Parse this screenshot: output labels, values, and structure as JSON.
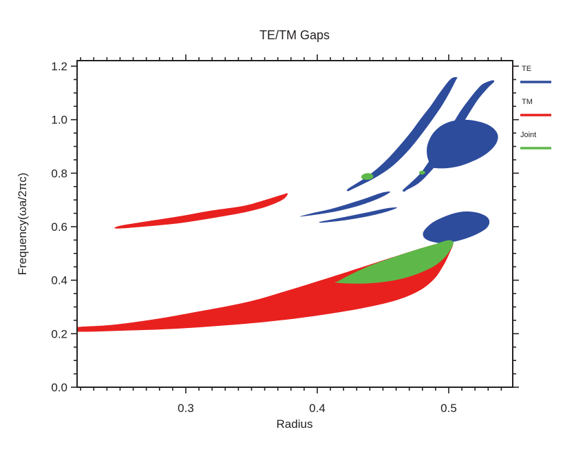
{
  "chart_data": {
    "type": "area",
    "title": "TE/TM Gaps",
    "xlabel": "Radius",
    "ylabel": "Frequency(ωa/2πc)",
    "xlim": [
      0.2173,
      0.5487
    ],
    "ylim": [
      0,
      1.2207
    ],
    "grid": false,
    "legend_position": "outside-top-right",
    "x_major_ticks": [
      0.3,
      0.4,
      0.5
    ],
    "x_tick_labels": [
      "0.3",
      "0.4",
      "0.5"
    ],
    "x_minor_step": 0.01,
    "y_major_ticks": [
      0,
      0.2,
      0.4,
      0.6,
      0.8,
      1.0,
      1.2
    ],
    "y_tick_labels": [
      "0.0",
      "0.2",
      "0.4",
      "0.6",
      "0.8",
      "1.0",
      "1.2"
    ],
    "y_minor_step": 0.05,
    "legend": [
      {
        "label": "TE",
        "color": "#2e4c9c"
      },
      {
        "label": "TM",
        "color": "#e8211f"
      },
      {
        "label": "Joint",
        "color": "#5eb849"
      }
    ],
    "series": [
      {
        "name": "TM",
        "color": "#e8211f",
        "polygons": [
          {
            "name": "tm-main-gap",
            "points": [
              [
                0.2173,
                0.208
              ],
              [
                0.25,
                0.211
              ],
              [
                0.29,
                0.218
              ],
              [
                0.33,
                0.231
              ],
              [
                0.37,
                0.249
              ],
              [
                0.41,
                0.275
              ],
              [
                0.44,
                0.301
              ],
              [
                0.462,
                0.328
              ],
              [
                0.478,
                0.362
              ],
              [
                0.489,
                0.405
              ],
              [
                0.496,
                0.455
              ],
              [
                0.501,
                0.505
              ],
              [
                0.5035,
                0.54
              ],
              [
                0.4995,
                0.548
              ],
              [
                0.49,
                0.535
              ],
              [
                0.474,
                0.512
              ],
              [
                0.455,
                0.482
              ],
              [
                0.433,
                0.447
              ],
              [
                0.408,
                0.408
              ],
              [
                0.378,
                0.362
              ],
              [
                0.348,
                0.32
              ],
              [
                0.312,
                0.285
              ],
              [
                0.276,
                0.254
              ],
              [
                0.244,
                0.233
              ],
              [
                0.2173,
                0.224
              ]
            ]
          },
          {
            "name": "tm-lens-gap",
            "points": [
              [
                0.2475,
                0.593
              ],
              [
                0.27,
                0.601
              ],
              [
                0.295,
                0.613
              ],
              [
                0.32,
                0.632
              ],
              [
                0.345,
                0.654
              ],
              [
                0.362,
                0.676
              ],
              [
                0.374,
                0.702
              ],
              [
                0.3775,
                0.724
              ],
              [
                0.373,
                0.719
              ],
              [
                0.359,
                0.698
              ],
              [
                0.343,
                0.677
              ],
              [
                0.319,
                0.66
              ],
              [
                0.294,
                0.638
              ],
              [
                0.269,
                0.619
              ],
              [
                0.2495,
                0.603
              ]
            ]
          },
          {
            "name": "tm-needle-gap",
            "points": [
              [
                0.4315,
                0.756
              ],
              [
                0.4385,
                0.772
              ],
              [
                0.4455,
                0.793
              ],
              [
                0.452,
                0.816
              ],
              [
                0.4575,
                0.84
              ],
              [
                0.4615,
                0.863
              ],
              [
                0.4635,
                0.882
              ],
              [
                0.4605,
                0.872
              ],
              [
                0.455,
                0.846
              ],
              [
                0.449,
                0.82
              ],
              [
                0.4425,
                0.795
              ],
              [
                0.4355,
                0.772
              ],
              [
                0.4295,
                0.757
              ]
            ]
          }
        ]
      },
      {
        "name": "TE",
        "color": "#2e4c9c",
        "polygons": [
          {
            "name": "te-low-blob-gap",
            "points": [
              [
                0.4865,
                0.545
              ],
              [
                0.496,
                0.538
              ],
              [
                0.506,
                0.546
              ],
              [
                0.515,
                0.559
              ],
              [
                0.523,
                0.576
              ],
              [
                0.529,
                0.596
              ],
              [
                0.531,
                0.617
              ],
              [
                0.529,
                0.637
              ],
              [
                0.522,
                0.652
              ],
              [
                0.513,
                0.657
              ],
              [
                0.504,
                0.65
              ],
              [
                0.496,
                0.636
              ],
              [
                0.4885,
                0.618
              ],
              [
                0.4835,
                0.598
              ],
              [
                0.4805,
                0.577
              ],
              [
                0.4815,
                0.558
              ]
            ]
          },
          {
            "name": "te-sliver-upper-gap",
            "points": [
              [
                0.388,
                0.638
              ],
              [
                0.402,
                0.647
              ],
              [
                0.416,
                0.659
              ],
              [
                0.43,
                0.676
              ],
              [
                0.4425,
                0.697
              ],
              [
                0.4515,
                0.717
              ],
              [
                0.4555,
                0.731
              ],
              [
                0.449,
                0.727
              ],
              [
                0.4385,
                0.709
              ],
              [
                0.4255,
                0.688
              ],
              [
                0.411,
                0.667
              ],
              [
                0.3965,
                0.651
              ],
              [
                0.3885,
                0.641
              ]
            ]
          },
          {
            "name": "te-sliver-lower-gap",
            "points": [
              [
                0.4035,
                0.615
              ],
              [
                0.419,
                0.623
              ],
              [
                0.4335,
                0.634
              ],
              [
                0.4475,
                0.649
              ],
              [
                0.4575,
                0.664
              ],
              [
                0.4605,
                0.672
              ],
              [
                0.452,
                0.668
              ],
              [
                0.4385,
                0.654
              ],
              [
                0.4235,
                0.639
              ],
              [
                0.409,
                0.625
              ],
              [
                0.402,
                0.618
              ]
            ]
          },
          {
            "name": "te-band1-gap",
            "points": [
              [
                0.4235,
                0.733
              ],
              [
                0.427,
                0.741
              ],
              [
                0.443,
                0.78
              ],
              [
                0.4555,
                0.82
              ],
              [
                0.4645,
                0.86
              ],
              [
                0.472,
                0.9
              ],
              [
                0.48,
                0.95
              ],
              [
                0.4875,
                1.0
              ],
              [
                0.4945,
                1.05
              ],
              [
                0.5005,
                1.1
              ],
              [
                0.5055,
                1.148
              ],
              [
                0.5065,
                1.158
              ],
              [
                0.5015,
                1.152
              ],
              [
                0.4935,
                1.103
              ],
              [
                0.4865,
                1.053
              ],
              [
                0.4785,
                1.002
              ],
              [
                0.471,
                0.952
              ],
              [
                0.4625,
                0.902
              ],
              [
                0.455,
                0.861
              ],
              [
                0.4465,
                0.821
              ],
              [
                0.436,
                0.781
              ],
              [
                0.4235,
                0.742
              ]
            ]
          },
          {
            "name": "te-band2-gap",
            "points": [
              [
                0.4665,
                0.731
              ],
              [
                0.468,
                0.737
              ],
              [
                0.477,
                0.762
              ],
              [
                0.485,
                0.8
              ],
              [
                0.492,
                0.84
              ],
              [
                0.4975,
                0.88
              ],
              [
                0.5025,
                0.92
              ],
              [
                0.5075,
                0.96
              ],
              [
                0.5125,
                1.0
              ],
              [
                0.5175,
                1.04
              ],
              [
                0.523,
                1.08
              ],
              [
                0.53,
                1.12
              ],
              [
                0.5345,
                1.142
              ],
              [
                0.533,
                1.147
              ],
              [
                0.5265,
                1.135
              ],
              [
                0.522,
                1.115
              ],
              [
                0.5155,
                1.076
              ],
              [
                0.5095,
                1.036
              ],
              [
                0.5045,
                0.997
              ],
              [
                0.4995,
                0.957
              ],
              [
                0.4945,
                0.917
              ],
              [
                0.4895,
                0.877
              ],
              [
                0.484,
                0.837
              ],
              [
                0.478,
                0.797
              ],
              [
                0.47,
                0.759
              ],
              [
                0.465,
                0.736
              ]
            ]
          },
          {
            "name": "te-leaf-gap",
            "points": [
              [
                0.487,
                0.822
              ],
              [
                0.496,
                0.818
              ],
              [
                0.506,
                0.824
              ],
              [
                0.515,
                0.838
              ],
              [
                0.524,
                0.858
              ],
              [
                0.531,
                0.882
              ],
              [
                0.536,
                0.91
              ],
              [
                0.5375,
                0.938
              ],
              [
                0.535,
                0.963
              ],
              [
                0.529,
                0.983
              ],
              [
                0.52,
                0.996
              ],
              [
                0.511,
                1.0
              ],
              [
                0.502,
                0.994
              ],
              [
                0.4945,
                0.978
              ],
              [
                0.489,
                0.955
              ],
              [
                0.4855,
                0.928
              ],
              [
                0.4835,
                0.898
              ],
              [
                0.4835,
                0.868
              ],
              [
                0.485,
                0.842
              ]
            ]
          }
        ]
      },
      {
        "name": "Joint",
        "color": "#5eb849",
        "polygons": [
          {
            "name": "joint-main-gap",
            "points": [
              [
                0.4145,
                0.391
              ],
              [
                0.432,
                0.387
              ],
              [
                0.45,
                0.393
              ],
              [
                0.4655,
                0.407
              ],
              [
                0.479,
                0.429
              ],
              [
                0.49,
                0.456
              ],
              [
                0.4975,
                0.488
              ],
              [
                0.5018,
                0.518
              ],
              [
                0.5035,
                0.541
              ],
              [
                0.4995,
                0.549
              ],
              [
                0.488,
                0.532
              ],
              [
                0.474,
                0.512
              ],
              [
                0.458,
                0.486
              ],
              [
                0.441,
                0.456
              ],
              [
                0.4265,
                0.424
              ],
              [
                0.4165,
                0.398
              ]
            ]
          },
          {
            "name": "joint-dot1-gap",
            "points": [
              [
                0.4345,
                0.778
              ],
              [
                0.4385,
                0.7755
              ],
              [
                0.442,
                0.781
              ],
              [
                0.4425,
                0.792
              ],
              [
                0.4395,
                0.8
              ],
              [
                0.4355,
                0.797
              ],
              [
                0.4335,
                0.7875
              ]
            ]
          },
          {
            "name": "joint-dot2-gap",
            "points": [
              [
                0.478,
                0.797
              ],
              [
                0.4805,
                0.7955
              ],
              [
                0.482,
                0.801
              ],
              [
                0.4815,
                0.808
              ],
              [
                0.479,
                0.809
              ],
              [
                0.4775,
                0.803
              ]
            ]
          }
        ]
      }
    ]
  }
}
